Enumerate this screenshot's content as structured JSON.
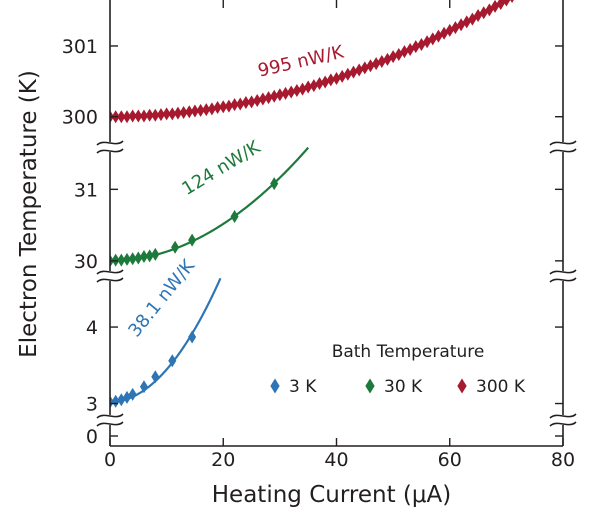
{
  "chart_data": {
    "type": "scatter",
    "xlabel": "Heating Current (μA)",
    "ylabel": "Electron Temperature (K)",
    "xlim": [
      0,
      80
    ],
    "x_ticks": [
      "0",
      "20",
      "40",
      "60",
      "80"
    ],
    "y_ticks": [
      "0",
      "3",
      "4",
      "30",
      "31",
      "300",
      "301"
    ],
    "y_axis_note": "broken axis with three segments (3 K, 30 K, 300 K baselines)",
    "grid": false,
    "legend": {
      "title": "Bath Temperature",
      "placement": "bottom-right",
      "entries": [
        "3 K",
        "30 K",
        "300 K"
      ]
    },
    "series": [
      {
        "name": "3 K",
        "color": "#2e75b6",
        "annotation": "38.1 nW/K",
        "x": [
          0,
          1,
          2,
          3,
          4,
          6,
          8,
          11,
          14.5
        ],
        "y": [
          3.02,
          3.03,
          3.05,
          3.08,
          3.12,
          3.22,
          3.35,
          3.56,
          3.87
        ],
        "fit_x_range": [
          0,
          19.5
        ]
      },
      {
        "name": "30 K",
        "color": "#1e7a3c",
        "annotation": "124 nW/K",
        "x": [
          0,
          1,
          2,
          3,
          4,
          5,
          6,
          7,
          8,
          11.5,
          14.5,
          22,
          29
        ],
        "y": [
          30.0,
          30.01,
          30.01,
          30.02,
          30.03,
          30.04,
          30.06,
          30.07,
          30.09,
          30.19,
          30.29,
          30.62,
          31.08
        ],
        "fit_x_range": [
          0,
          35
        ]
      },
      {
        "name": "300 K",
        "color": "#a6192e",
        "annotation": "995 nW/K",
        "x": [
          0,
          1,
          2,
          3,
          4,
          5,
          6,
          7,
          8,
          9,
          10,
          11,
          12,
          13,
          14,
          15,
          16,
          17,
          18,
          19,
          20,
          21,
          22,
          23,
          24,
          25,
          26,
          27,
          28,
          29,
          30,
          31,
          32,
          33,
          34,
          35,
          36,
          37,
          38,
          39,
          40,
          41,
          42,
          43,
          44,
          45,
          46,
          47,
          48,
          49,
          50,
          51,
          52,
          53,
          54,
          55,
          56,
          57,
          58,
          59,
          60,
          61,
          62,
          63,
          64,
          65,
          66,
          67,
          68,
          69,
          70,
          71,
          72,
          73
        ],
        "y": [
          300.0,
          300.0,
          300.0,
          300.0,
          300.01,
          300.01,
          300.01,
          300.02,
          300.02,
          300.03,
          300.04,
          300.04,
          300.05,
          300.06,
          300.07,
          300.08,
          300.09,
          300.1,
          300.11,
          300.13,
          300.14,
          300.15,
          300.17,
          300.18,
          300.2,
          300.21,
          300.23,
          300.25,
          300.27,
          300.29,
          300.31,
          300.33,
          300.35,
          300.37,
          300.39,
          300.42,
          300.44,
          300.47,
          300.49,
          300.52,
          300.54,
          300.57,
          300.6,
          300.63,
          300.66,
          300.69,
          300.72,
          300.75,
          300.78,
          300.81,
          300.85,
          300.88,
          300.92,
          300.95,
          300.99,
          301.02,
          301.06,
          301.1,
          301.14,
          301.18,
          301.22,
          301.26,
          301.3,
          301.34,
          301.38,
          301.43,
          301.47,
          301.51,
          301.56,
          301.6,
          301.65,
          301.7,
          301.75,
          301.8
        ],
        "fit_x_range": [
          0,
          78
        ]
      }
    ]
  }
}
